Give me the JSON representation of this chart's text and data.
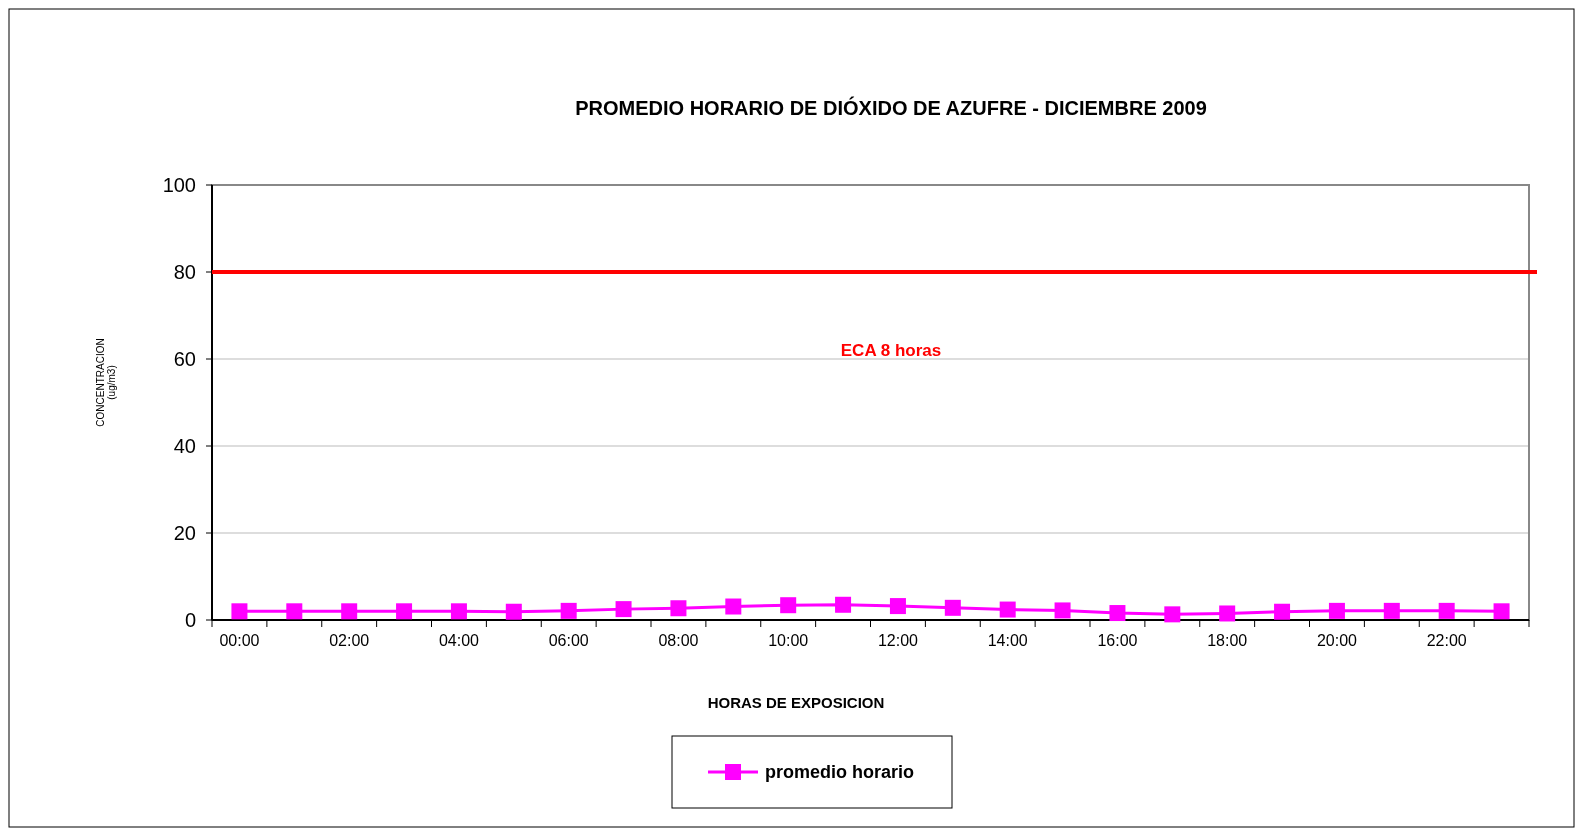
{
  "chart_data": {
    "type": "line",
    "title": "PROMEDIO HORARIO DE DIÓXIDO DE AZUFRE - DICIEMBRE 2009",
    "xlabel": "HORAS DE EXPOSICION",
    "ylabel": "CONCENTRACION\n(ug/m3)",
    "categories": [
      "00:00",
      null,
      "02:00",
      null,
      "04:00",
      null,
      "06:00",
      null,
      "08:00",
      null,
      "10:00",
      null,
      "12:00",
      null,
      "14:00",
      null,
      "16:00",
      null,
      "18:00",
      null,
      "20:00",
      null,
      "22:00",
      null
    ],
    "series": [
      {
        "name": "promedio horario",
        "color": "#ff00ff",
        "values": [
          2.0,
          2.0,
          2.0,
          2.0,
          2.0,
          1.9,
          2.1,
          2.5,
          2.7,
          3.1,
          3.4,
          3.5,
          3.2,
          2.8,
          2.4,
          2.2,
          1.6,
          1.3,
          1.5,
          1.9,
          2.1,
          2.1,
          2.1,
          2.0
        ]
      }
    ],
    "ylim": [
      0,
      100
    ],
    "yticks": [
      0,
      20,
      40,
      60,
      80,
      100
    ],
    "grid": "y",
    "legend": "bottom",
    "marker": "square",
    "line_style": "solid",
    "ref_lines": [
      {
        "axis": "y",
        "value": 80,
        "label": "ECA 8 horas",
        "color": "#ff0000"
      }
    ]
  }
}
